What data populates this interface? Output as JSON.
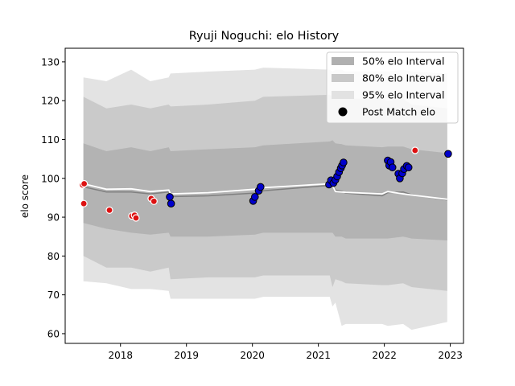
{
  "chart_data": {
    "type": "scatter",
    "title": "Ryuji Noguchi: elo History",
    "xlabel": "",
    "ylabel": "elo score",
    "xlim": [
      "2017-03-01",
      "2023-03-15"
    ],
    "ylim": [
      57.5,
      133.5
    ],
    "x_ticks": [
      "2018",
      "2019",
      "2020",
      "2021",
      "2022",
      "2023"
    ],
    "y_ticks": [
      60,
      70,
      80,
      90,
      100,
      110,
      120,
      130
    ],
    "grid": false,
    "legend_position": "top-right",
    "legend": [
      {
        "label": "50% elo Interval",
        "kind": "band",
        "color": "#b0b0b0"
      },
      {
        "label": "80% elo Interval",
        "kind": "band",
        "color": "#c8c8c8"
      },
      {
        "label": "95% elo Interval",
        "kind": "band",
        "color": "#e2e2e2"
      },
      {
        "label": "Post Match elo",
        "kind": "marker",
        "color": "#000000"
      }
    ],
    "colors": {
      "band_50": "#b3b3b3",
      "band_80": "#cacaca",
      "band_95": "#e3e3e3",
      "mean_line": "#808080",
      "white_line": "#ffffff",
      "win": "#0000cc",
      "loss": "#dd1111"
    },
    "band_dates": [
      "2017-06-10",
      "2017-10-15",
      "2018-03-01",
      "2018-06-15",
      "2018-09-25",
      "2018-10-05",
      "2019-05-01",
      "2020-01-15",
      "2020-03-01",
      "2021-03-05",
      "2021-03-20",
      "2021-04-05",
      "2021-05-10",
      "2021-06-01",
      "2021-12-20",
      "2022-01-20",
      "2022-04-15",
      "2022-06-01",
      "2022-12-15"
    ],
    "band_mean": [
      97.8,
      96.5,
      96.5,
      96.0,
      96.5,
      95.3,
      95.5,
      96.2,
      96.8,
      98.2,
      98.5,
      97.0,
      96.7,
      96.2,
      95.5,
      96.3,
      96.5,
      95.8,
      94.4
    ],
    "band_50_upper": [
      109,
      107,
      108,
      107,
      108,
      107,
      107.5,
      108,
      108.5,
      109.5,
      109.8,
      109,
      108.8,
      108.5,
      108,
      108.2,
      108.2,
      107.5,
      106.5
    ],
    "band_50_lower": [
      88.5,
      87,
      86,
      85.5,
      86,
      85,
      85,
      85.5,
      86,
      86,
      86,
      85,
      85,
      84.5,
      84.5,
      84.5,
      85,
      84.5,
      84
    ],
    "band_80_upper": [
      121,
      118,
      119,
      118,
      119,
      118.5,
      119,
      120,
      121,
      121.5,
      121,
      121.5,
      120.5,
      120.5,
      120.5,
      120,
      120.5,
      119,
      118
    ],
    "band_80_lower": [
      80,
      77,
      77,
      76,
      77,
      74,
      74.5,
      74.5,
      75,
      75,
      72,
      74,
      73.5,
      73,
      72.5,
      72.5,
      73,
      72,
      71
    ],
    "band_95_upper": [
      126,
      125,
      128,
      125,
      126,
      127,
      127.5,
      128,
      128.5,
      128,
      127.5,
      128,
      128,
      127.5,
      127.5,
      127.5,
      128,
      127.5,
      127
    ],
    "band_95_lower": [
      73.5,
      73,
      71.5,
      71.5,
      71,
      69,
      69,
      69,
      69.5,
      69.5,
      67,
      68,
      62,
      62.5,
      62.5,
      62,
      62.5,
      61,
      63
    ],
    "white_line": [
      [
        "2017-06-10",
        98.6
      ],
      [
        "2017-10-15",
        97.2
      ],
      [
        "2018-03-01",
        97.3
      ],
      [
        "2018-06-15",
        96.6
      ],
      [
        "2018-09-25",
        97.0
      ],
      [
        "2018-10-05",
        96.0
      ],
      [
        "2019-05-01",
        96.3
      ],
      [
        "2020-01-15",
        97.2
      ],
      [
        "2020-03-01",
        97.6
      ],
      [
        "2021-03-05",
        98.6
      ],
      [
        "2021-03-20",
        98.2
      ],
      [
        "2021-04-05",
        96.6
      ],
      [
        "2021-06-01",
        96.4
      ],
      [
        "2021-12-20",
        96.0
      ],
      [
        "2022-01-20",
        96.6
      ],
      [
        "2022-04-15",
        96.0
      ],
      [
        "2022-06-01",
        95.7
      ],
      [
        "2022-12-15",
        94.6
      ]
    ],
    "points": [
      {
        "date": "2017-06-05",
        "elo": 98.3,
        "result": "loss"
      },
      {
        "date": "2017-06-12",
        "elo": 93.5,
        "result": "loss"
      },
      {
        "date": "2017-06-14",
        "elo": 98.6,
        "result": "loss"
      },
      {
        "date": "2017-11-01",
        "elo": 91.8,
        "result": "loss"
      },
      {
        "date": "2018-03-05",
        "elo": 90.3,
        "result": "loss"
      },
      {
        "date": "2018-03-20",
        "elo": 90.5,
        "result": "loss"
      },
      {
        "date": "2018-03-28",
        "elo": 89.8,
        "result": "loss"
      },
      {
        "date": "2018-06-20",
        "elo": 94.8,
        "result": "loss"
      },
      {
        "date": "2018-07-05",
        "elo": 94.1,
        "result": "loss"
      },
      {
        "date": "2018-10-01",
        "elo": 95.2,
        "result": "win"
      },
      {
        "date": "2018-10-08",
        "elo": 93.5,
        "result": "win"
      },
      {
        "date": "2020-01-05",
        "elo": 94.2,
        "result": "win"
      },
      {
        "date": "2020-01-15",
        "elo": 95.2,
        "result": "win"
      },
      {
        "date": "2020-02-05",
        "elo": 96.8,
        "result": "win"
      },
      {
        "date": "2020-02-15",
        "elo": 97.8,
        "result": "win"
      },
      {
        "date": "2021-03-01",
        "elo": 98.4,
        "result": "win"
      },
      {
        "date": "2021-03-12",
        "elo": 99.5,
        "result": "win"
      },
      {
        "date": "2021-03-25",
        "elo": 98.8,
        "result": "win"
      },
      {
        "date": "2021-04-05",
        "elo": 99.6,
        "result": "win"
      },
      {
        "date": "2021-04-15",
        "elo": 100.5,
        "result": "win"
      },
      {
        "date": "2021-04-25",
        "elo": 101.6,
        "result": "win"
      },
      {
        "date": "2021-05-05",
        "elo": 102.6,
        "result": "win"
      },
      {
        "date": "2021-05-12",
        "elo": 103.3,
        "result": "win"
      },
      {
        "date": "2021-05-20",
        "elo": 104.1,
        "result": "win"
      },
      {
        "date": "2022-01-20",
        "elo": 104.6,
        "result": "win"
      },
      {
        "date": "2022-01-28",
        "elo": 103.3,
        "result": "win"
      },
      {
        "date": "2022-02-05",
        "elo": 104.2,
        "result": "win"
      },
      {
        "date": "2022-02-15",
        "elo": 102.8,
        "result": "win"
      },
      {
        "date": "2022-03-20",
        "elo": 101.2,
        "result": "win"
      },
      {
        "date": "2022-03-28",
        "elo": 100.0,
        "result": "win"
      },
      {
        "date": "2022-04-10",
        "elo": 101.3,
        "result": "win"
      },
      {
        "date": "2022-04-20",
        "elo": 102.4,
        "result": "win"
      },
      {
        "date": "2022-05-05",
        "elo": 103.2,
        "result": "win"
      },
      {
        "date": "2022-05-15",
        "elo": 102.8,
        "result": "win"
      },
      {
        "date": "2022-06-20",
        "elo": 107.2,
        "result": "loss"
      },
      {
        "date": "2022-12-20",
        "elo": 106.3,
        "result": "win"
      }
    ]
  }
}
